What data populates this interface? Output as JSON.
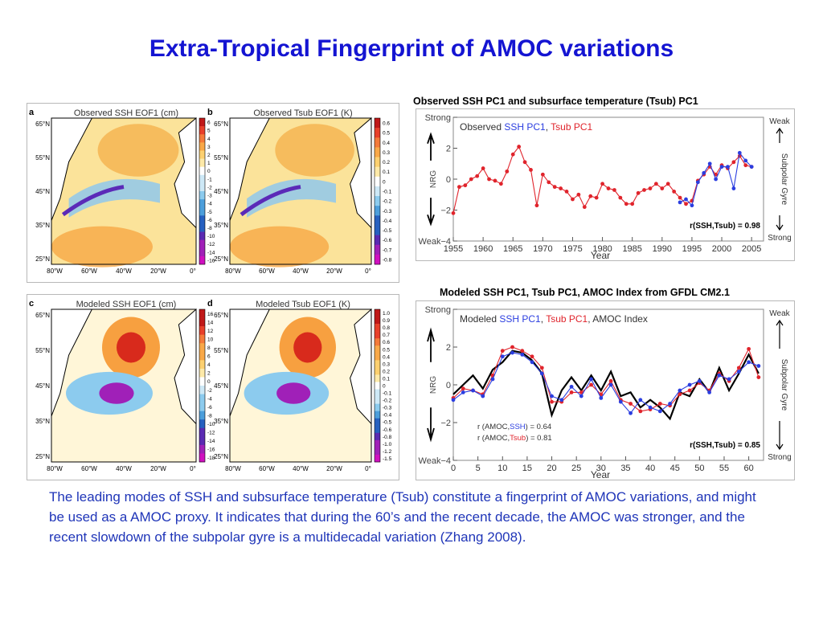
{
  "slide": {
    "title": "Extra-Tropical Fingerprint of AMOC variations",
    "body_text": "The leading modes of SSH and subsurface temperature (Tsub) constitute a fingerprint of AMOC variations, and might be used as a AMOC proxy. It indicates that during the 60’s and the recent decade, the AMOC was stronger, and the recent slowdown of the subpolar gyre is a multidecadal variation (Zhang 2008)."
  },
  "maps": [
    {
      "letter": "a",
      "title": "Observed SSH EOF1 (cm)",
      "colorbar_ticks": [
        "6",
        "5",
        "4",
        "3",
        "2",
        "1",
        "0",
        "-1",
        "-2",
        "-3",
        "-4",
        "-5",
        "-6",
        "-8",
        "-10",
        "-12",
        "-14",
        "-16"
      ]
    },
    {
      "letter": "b",
      "title": "Observed Tsub EOF1 (K)",
      "colorbar_ticks": [
        "0.6",
        "0.5",
        "0.4",
        "0.3",
        "0.2",
        "0.1",
        "0",
        "-0.1",
        "-0.2",
        "-0.3",
        "-0.4",
        "-0.5",
        "-0.6",
        "-0.7",
        "-0.8"
      ]
    },
    {
      "letter": "c",
      "title": "Modeled SSH EOF1 (cm)",
      "colorbar_ticks": [
        "16",
        "14",
        "12",
        "10",
        "8",
        "6",
        "4",
        "2",
        "0",
        "-2",
        "-4",
        "-6",
        "-8",
        "-10",
        "-12",
        "-14",
        "-16",
        "-18"
      ]
    },
    {
      "letter": "d",
      "title": "Modeled Tsub EOF1 (K)",
      "colorbar_ticks": [
        "1.0",
        "0.9",
        "0.8",
        "0.7",
        "0.6",
        "0.5",
        "0.4",
        "0.3",
        "0.2",
        "0.1",
        "0",
        "-0.1",
        "-0.2",
        "-0.3",
        "-0.4",
        "-0.5",
        "-0.6",
        "-0.8",
        "-1.0",
        "-1.2",
        "-1.5"
      ]
    }
  ],
  "map_axes": {
    "lat_labels": [
      "65°N",
      "55°N",
      "45°N",
      "35°N",
      "25°N"
    ],
    "lon_labels": [
      "80°W",
      "60°W",
      "40°W",
      "20°W",
      "0°"
    ]
  },
  "chart_data": [
    {
      "type": "line",
      "caption": "Observed SSH PC1 and subsurface temperature (Tsub) PC1",
      "legend": [
        "Observed ",
        "SSH PC1",
        ", ",
        "Tsub PC1"
      ],
      "xlabel": "Year",
      "ylabel": "NRG",
      "ylim": [
        -4,
        4
      ],
      "yticks": [
        -4,
        -2,
        0,
        2,
        4
      ],
      "ytick_labels": [
        "Weak−4",
        "−2",
        "0",
        "2",
        "Strong"
      ],
      "xlim": [
        1955,
        2007
      ],
      "xticks": [
        1955,
        1960,
        1965,
        1970,
        1975,
        1980,
        1985,
        1990,
        1995,
        2000,
        2005
      ],
      "right_label": "Subpolar Gyre",
      "right_top": "Weak",
      "right_bottom": "Strong",
      "annotation": "r(SSH,Tsub) = 0.98",
      "series": [
        {
          "name": "Tsub PC1",
          "color": "#e0242c",
          "x": [
            1955,
            1956,
            1957,
            1958,
            1959,
            1960,
            1961,
            1962,
            1963,
            1964,
            1965,
            1966,
            1967,
            1968,
            1969,
            1970,
            1971,
            1972,
            1973,
            1974,
            1975,
            1976,
            1977,
            1978,
            1979,
            1980,
            1981,
            1982,
            1983,
            1984,
            1985,
            1986,
            1987,
            1988,
            1989,
            1990,
            1991,
            1992,
            1993,
            1994,
            1995,
            1996,
            1997,
            1998,
            1999,
            2000,
            2001,
            2002,
            2003,
            2004,
            2005
          ],
          "y": [
            -2.2,
            -0.5,
            -0.4,
            0.0,
            0.2,
            0.7,
            0.0,
            -0.1,
            -0.3,
            0.5,
            1.6,
            2.1,
            1.1,
            0.6,
            -1.7,
            0.3,
            -0.2,
            -0.5,
            -0.6,
            -0.8,
            -1.3,
            -1.0,
            -1.8,
            -1.1,
            -1.2,
            -0.3,
            -0.6,
            -0.7,
            -1.2,
            -1.6,
            -1.6,
            -0.9,
            -0.7,
            -0.6,
            -0.3,
            -0.6,
            -0.3,
            -0.8,
            -1.2,
            -1.6,
            -1.4,
            -0.1,
            0.3,
            0.8,
            0.3,
            0.9,
            0.7,
            1.1,
            1.5,
            0.9,
            0.8
          ]
        },
        {
          "name": "SSH PC1",
          "color": "#2b3ee0",
          "x": [
            1993,
            1994,
            1995,
            1996,
            1997,
            1998,
            1999,
            2000,
            2001,
            2002,
            2003,
            2004,
            2005
          ],
          "y": [
            -1.5,
            -1.3,
            -1.7,
            -0.2,
            0.4,
            1.0,
            0.0,
            0.8,
            0.8,
            -0.6,
            1.7,
            1.2,
            0.8
          ]
        }
      ]
    },
    {
      "type": "line",
      "caption": "Modeled SSH PC1, Tsub PC1, AMOC Index from GFDL CM2.1",
      "legend": [
        "Modeled ",
        "SSH PC1",
        ", ",
        "Tsub PC1",
        ", AMOC Index"
      ],
      "xlabel": "Year",
      "ylabel": "NRG",
      "ylim": [
        -4,
        4
      ],
      "yticks": [
        -4,
        -2,
        0,
        2,
        4
      ],
      "ytick_labels": [
        "Weak−4",
        "−2",
        "0",
        "2",
        "Strong"
      ],
      "xlim": [
        0,
        63
      ],
      "xticks": [
        0,
        5,
        10,
        15,
        20,
        25,
        30,
        35,
        40,
        45,
        50,
        55,
        60
      ],
      "right_label": "Subpolar Gyre",
      "right_top": "Weak",
      "right_bottom": "Strong",
      "corr_lines": [
        [
          "r (AMOC,",
          "SSH",
          ") = 0.64"
        ],
        [
          "r (AMOC,",
          "Tsub",
          ") = 0.81"
        ]
      ],
      "annotation": "r(SSH,Tsub) = 0.85",
      "series": [
        {
          "name": "AMOC Index",
          "color": "#000000",
          "x": [
            0,
            2,
            4,
            6,
            8,
            10,
            12,
            14,
            16,
            18,
            20,
            22,
            24,
            26,
            28,
            30,
            32,
            34,
            36,
            38,
            40,
            42,
            44,
            46,
            48,
            50,
            52,
            54,
            56,
            58,
            60,
            62
          ],
          "y": [
            -0.5,
            0.0,
            0.5,
            -0.2,
            0.8,
            1.2,
            1.8,
            1.7,
            1.3,
            0.6,
            -1.6,
            -0.3,
            0.4,
            -0.3,
            0.5,
            -0.3,
            0.7,
            -0.6,
            -0.4,
            -1.2,
            -0.8,
            -1.2,
            -1.8,
            -0.4,
            -0.6,
            0.3,
            -0.4,
            0.9,
            -0.3,
            0.6,
            1.6,
            0.6
          ]
        },
        {
          "name": "Tsub PC1",
          "color": "#e0242c",
          "x": [
            0,
            2,
            4,
            6,
            8,
            10,
            12,
            14,
            16,
            18,
            20,
            22,
            24,
            26,
            28,
            30,
            32,
            34,
            36,
            38,
            40,
            42,
            44,
            46,
            48,
            50,
            52,
            54,
            56,
            58,
            60,
            62
          ],
          "y": [
            -0.7,
            -0.2,
            -0.3,
            -0.5,
            0.5,
            1.8,
            2.0,
            1.8,
            1.5,
            0.9,
            -0.9,
            -0.9,
            -0.4,
            -0.4,
            0.0,
            -0.5,
            0.2,
            -0.8,
            -1.0,
            -1.4,
            -1.3,
            -1.0,
            -1.1,
            -0.5,
            -0.3,
            0.1,
            -0.3,
            0.6,
            0.2,
            0.9,
            1.9,
            0.4
          ]
        },
        {
          "name": "SSH PC1",
          "color": "#2b3ee0",
          "x": [
            0,
            2,
            4,
            6,
            8,
            10,
            12,
            14,
            16,
            18,
            20,
            22,
            24,
            26,
            28,
            30,
            32,
            34,
            36,
            38,
            40,
            42,
            44,
            46,
            48,
            50,
            52,
            54,
            56,
            58,
            60,
            62
          ],
          "y": [
            -0.8,
            -0.4,
            -0.3,
            -0.6,
            0.3,
            1.5,
            1.7,
            1.6,
            1.2,
            0.6,
            -0.6,
            -0.8,
            -0.1,
            -0.6,
            0.3,
            -0.7,
            0.0,
            -0.9,
            -1.5,
            -0.8,
            -1.2,
            -1.4,
            -1.0,
            -0.3,
            0.0,
            0.2,
            -0.4,
            0.5,
            0.3,
            0.7,
            1.2,
            1.0
          ]
        }
      ]
    }
  ],
  "colors": {
    "title": "#1414d2",
    "body": "#1f35b8",
    "red": "#e0242c",
    "blue": "#2b3ee0"
  }
}
